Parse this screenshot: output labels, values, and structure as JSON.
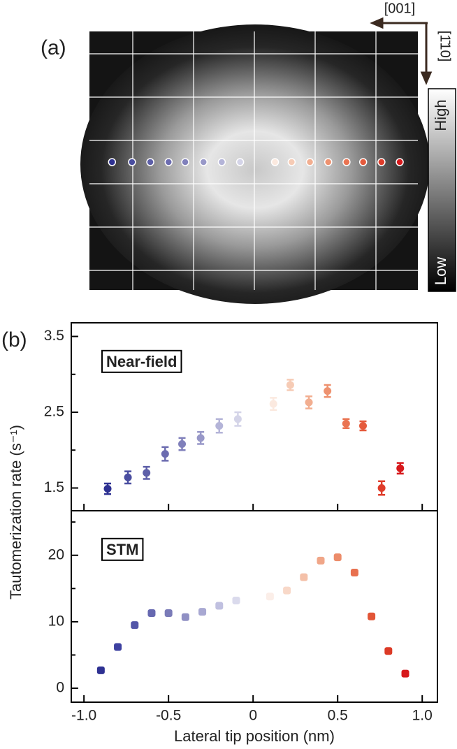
{
  "panel_a": {
    "label": "(a)",
    "directions": [
      "[001]",
      "[1̄10]"
    ],
    "colorbar": {
      "high": "High",
      "low": "Low"
    }
  },
  "panel_b_label": "(b)",
  "chart_data": [
    {
      "type": "scatter",
      "label": "Near-field",
      "ylabel": "Tautomerization rate (s⁻¹)",
      "x": [
        -0.86,
        -0.74,
        -0.63,
        -0.52,
        -0.42,
        -0.31,
        -0.2,
        -0.09,
        0.12,
        0.22,
        0.33,
        0.44,
        0.55,
        0.65,
        0.76,
        0.87
      ],
      "values": [
        1.49,
        1.64,
        1.7,
        1.95,
        2.08,
        2.16,
        2.32,
        2.41,
        2.61,
        2.86,
        2.63,
        2.78,
        2.35,
        2.32,
        1.5,
        1.76
      ],
      "errors": [
        0.07,
        0.08,
        0.08,
        0.09,
        0.08,
        0.08,
        0.09,
        0.09,
        0.08,
        0.07,
        0.08,
        0.08,
        0.06,
        0.06,
        0.09,
        0.07
      ],
      "colors": [
        "#2e3192",
        "#4a4ea0",
        "#5d5fa8",
        "#6c6cb0",
        "#8080bb",
        "#9898c8",
        "#b4b4d8",
        "#d4d4e8",
        "#fbe9df",
        "#f6cbb5",
        "#f2ae90",
        "#ee9270",
        "#ea7452",
        "#e55a3c",
        "#df3c2a",
        "#d7191c"
      ],
      "xlim": [
        -1.075,
        1.09
      ],
      "ylim": [
        1.2,
        3.68
      ],
      "yticks": [
        1.5,
        2.5,
        3.5
      ],
      "minor_yticks": [
        2,
        3
      ]
    },
    {
      "type": "scatter",
      "label": "STM",
      "xlabel": "Lateral tip position (nm)",
      "x": [
        -0.9,
        -0.8,
        -0.7,
        -0.6,
        -0.5,
        -0.4,
        -0.3,
        -0.2,
        -0.1,
        0.1,
        0.2,
        0.3,
        0.4,
        0.5,
        0.6,
        0.7,
        0.8,
        0.9
      ],
      "values": [
        2.7,
        6.2,
        9.5,
        11.3,
        11.3,
        10.7,
        11.5,
        12.4,
        13.2,
        13.8,
        14.7,
        16.7,
        19.2,
        19.7,
        17.4,
        10.8,
        5.6,
        2.2
      ],
      "colors": [
        "#2e3192",
        "#3d40a0",
        "#5255a8",
        "#6668b0",
        "#7a7bb8",
        "#9090c4",
        "#a8a8d2",
        "#c0c0e0",
        "#dadaec",
        "#fbeee8",
        "#f8d8c8",
        "#f4c0a8",
        "#f0a688",
        "#ec8c6a",
        "#e8704f",
        "#e25537",
        "#dc3a26",
        "#d7191c"
      ],
      "xlim": [
        -1.075,
        1.09
      ],
      "ylim": [
        -2.1,
        26.7
      ],
      "yticks": [
        0,
        10,
        20
      ],
      "minor_yticks": [
        5,
        15,
        25
      ],
      "xticks": [
        {
          "value": -1,
          "label": "-1.0"
        },
        -0.5,
        0,
        0.5,
        {
          "value": 1,
          "label": "1.0"
        }
      ]
    }
  ]
}
